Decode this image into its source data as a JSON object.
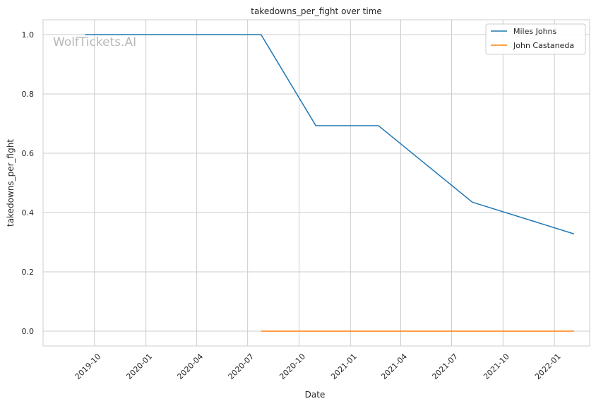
{
  "chart_data": {
    "type": "line",
    "title": "takedowns_per_fight over time",
    "xlabel": "Date",
    "ylabel": "takedowns_per_fight",
    "x_axis_type": "date",
    "xlim": [
      "2019-07-01",
      "2022-03-05"
    ],
    "ylim": [
      -0.05,
      1.05
    ],
    "x_ticks": [
      "2019-10",
      "2020-01",
      "2020-04",
      "2020-07",
      "2020-10",
      "2021-01",
      "2021-04",
      "2021-07",
      "2021-10",
      "2022-01"
    ],
    "y_ticks": [
      "0.0",
      "0.2",
      "0.4",
      "0.6",
      "0.8",
      "1.0"
    ],
    "grid": true,
    "legend": "top-right",
    "watermark": "WolfTickets.AI",
    "series": [
      {
        "name": "Miles Johns",
        "color": "#1f77b4",
        "points": [
          {
            "x": "2019-09-14",
            "y": 1.0
          },
          {
            "x": "2020-07-25",
            "y": 1.0
          },
          {
            "x": "2020-10-31",
            "y": 0.693
          },
          {
            "x": "2021-02-20",
            "y": 0.693
          },
          {
            "x": "2021-08-07",
            "y": 0.435
          },
          {
            "x": "2022-02-05",
            "y": 0.328
          }
        ]
      },
      {
        "name": "John Castaneda",
        "color": "#ff7f0e",
        "points": [
          {
            "x": "2020-07-25",
            "y": 0.0
          },
          {
            "x": "2022-02-05",
            "y": 0.0
          }
        ]
      }
    ]
  }
}
